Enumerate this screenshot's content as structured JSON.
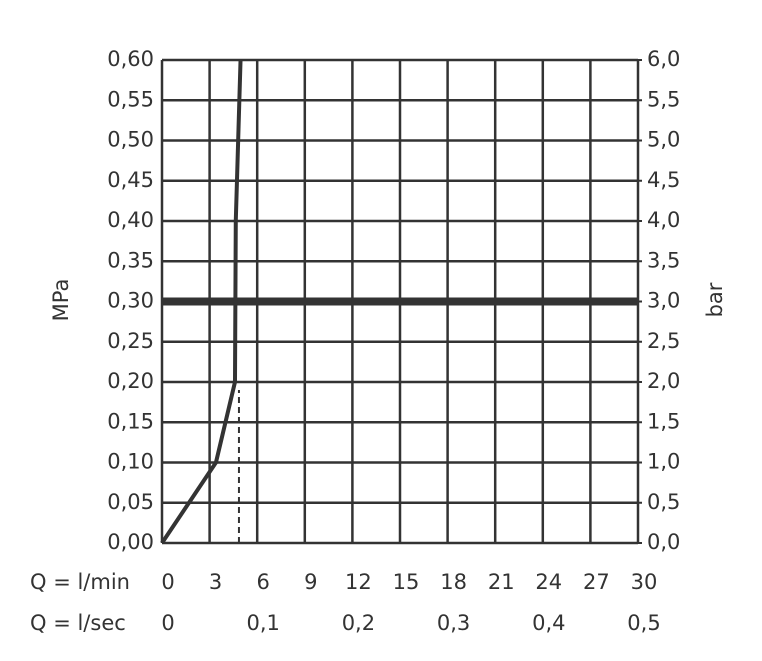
{
  "chart_data": {
    "type": "line",
    "x": [
      0,
      3.4,
      4.6,
      4.65,
      4.95
    ],
    "values": [
      0,
      0.1,
      0.2,
      0.4,
      0.6
    ],
    "color": "#333333",
    "dashed": {
      "x": [
        4.85,
        4.85
      ],
      "values": [
        0,
        0.19
      ]
    },
    "hline": 0.3,
    "grid": true,
    "xlabel": "Q = l/min",
    "x2label": "Q = l/sec",
    "ylabel": "MPa",
    "y2label": "bar",
    "xlim": [
      0,
      30
    ],
    "xticks": [
      0,
      3,
      6,
      9,
      12,
      15,
      18,
      21,
      24,
      27,
      30
    ],
    "x2lim": [
      0,
      0.5
    ],
    "x2ticks": [
      0,
      {
        "value": 0.1,
        "label": "0,1"
      },
      {
        "value": 0.2,
        "label": "0,2"
      },
      {
        "value": 0.3,
        "label": "0,3"
      },
      {
        "value": 0.4,
        "label": "0,4"
      },
      {
        "value": 0.5,
        "label": "0,5"
      }
    ],
    "ylim": [
      0,
      0.6
    ],
    "yticks": [
      {
        "value": 0,
        "label": "0,00"
      },
      {
        "value": 0.05,
        "label": "0,05"
      },
      {
        "value": 0.1,
        "label": "0,10"
      },
      {
        "value": 0.15,
        "label": "0,15"
      },
      {
        "value": 0.2,
        "label": "0,20"
      },
      {
        "value": 0.25,
        "label": "0,25"
      },
      {
        "value": 0.3,
        "label": "0,30"
      },
      {
        "value": 0.35,
        "label": "0,35"
      },
      {
        "value": 0.4,
        "label": "0,40"
      },
      {
        "value": 0.45,
        "label": "0,45"
      },
      {
        "value": 0.5,
        "label": "0,50"
      },
      {
        "value": 0.55,
        "label": "0,55"
      },
      {
        "value": 0.6,
        "label": "0,60"
      }
    ],
    "y2lim": [
      0,
      6
    ],
    "y2ticks": [
      {
        "value": 0,
        "label": "0,0"
      },
      {
        "value": 0.5,
        "label": "0,5"
      },
      {
        "value": 1,
        "label": "1,0"
      },
      {
        "value": 1.5,
        "label": "1,5"
      },
      {
        "value": 2,
        "label": "2,0"
      },
      {
        "value": 2.5,
        "label": "2,5"
      },
      {
        "value": 3,
        "label": "3,0"
      },
      {
        "value": 3.5,
        "label": "3,5"
      },
      {
        "value": 4,
        "label": "4,0"
      },
      {
        "value": 4.5,
        "label": "4,5"
      },
      {
        "value": 5,
        "label": "5,0"
      },
      {
        "value": 5.5,
        "label": "5,5"
      },
      {
        "value": 6,
        "label": "6,0"
      }
    ]
  }
}
